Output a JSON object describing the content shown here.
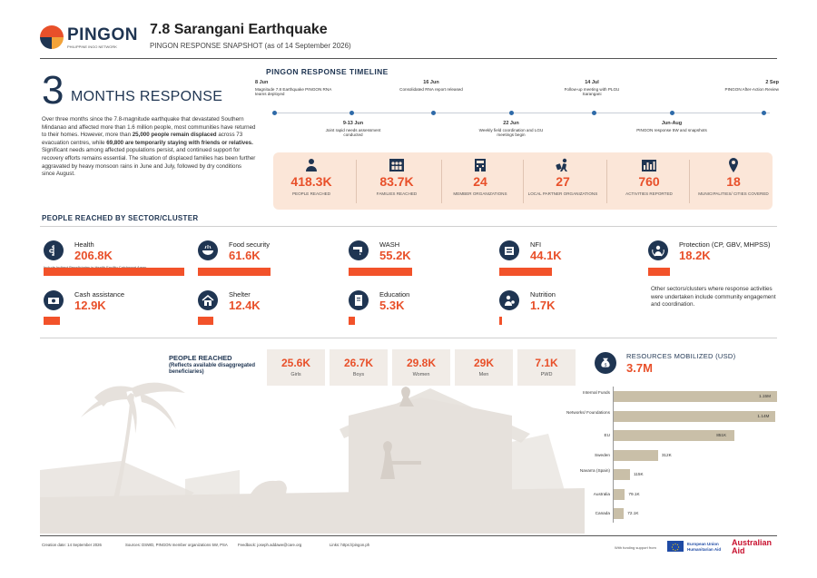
{
  "header": {
    "logo_text": "PINGON",
    "logo_subtext": "PHILIPPINE INGO NETWORK",
    "title": "7.8 Sarangani Earthquake",
    "subtitle": "PINGON RESPONSE SNAPSHOT (as of 14 September 2026)"
  },
  "intro": {
    "big_number": "3",
    "months_label": "MONTHS RESPONSE",
    "text_1": "Over three months since the 7.8-magnitude earthquake that devastated Southern Mindanao and affected more than 1.6 million people, most communities have returned to their homes. However, more than ",
    "text_bold_1": "25,000 people remain displaced",
    "text_2": " across 73 evacuation centres, while ",
    "text_bold_2": "69,800 are temporarily staying with friends or relatives.",
    "text_3": " Significant needs among affected populations persist, and continued support for recovery efforts remains essential. The situation of displaced families has been further aggravated by heavy monsoon rains in June and July, followed by dry conditions since August."
  },
  "timeline": {
    "title": "PINGON RESPONSE TIMELINE",
    "events_top": [
      {
        "date": "8 Jun",
        "text": "Magnitude 7.8 Earthquake PINGON RNA teams deployed"
      },
      {
        "date": "16 Jun",
        "text": "Consolidated RNA report released"
      },
      {
        "date": "14 Jul",
        "text": "Follow-up meeting with PLGU Sarangani"
      },
      {
        "date": "2 Sep",
        "text": "PINGON After-Action Review"
      }
    ],
    "events_bottom": [
      {
        "date": "9-13 Jun",
        "text": "Joint rapid needs assessment conducted"
      },
      {
        "date": "22 Jun",
        "text": "Weekly field coordination and LGU meetings begin"
      },
      {
        "date": "Jun-Aug",
        "text": "PINGON response 5W and snapshots"
      }
    ]
  },
  "kpis": [
    {
      "value": "418.3K",
      "label": "PEOPLE REACHED",
      "icon": "person-icon"
    },
    {
      "value": "83.7K",
      "label": "FAMILIES REACHED",
      "icon": "family-icon"
    },
    {
      "value": "24",
      "label": "MEMBER ORGANIZATIONS",
      "icon": "ngo-building-icon"
    },
    {
      "value": "27",
      "label": "LOCAL PARTNER ORGANIZATIONS",
      "icon": "partner-icon"
    },
    {
      "value": "760",
      "label": "ACTIVITIES REPORTED",
      "icon": "activities-icon"
    },
    {
      "value": "18",
      "label": "MUNICIPALITIES/ CITIES COVERED",
      "icon": "location-pin-icon"
    }
  ],
  "sectors": {
    "title": "PEOPLE REACHED BY SECTOR/CLUSTER",
    "items": [
      {
        "name": "Health",
        "value": "206.8K",
        "note": "Include Indirect Beneficiaries in Health Facility Catchment Areas",
        "fraction": 1.0
      },
      {
        "name": "Food security",
        "value": "61.6K",
        "note": "",
        "fraction": 0.298
      },
      {
        "name": "WASH",
        "value": "55.2K",
        "note": "",
        "fraction": 0.267
      },
      {
        "name": "NFI",
        "value": "44.1K",
        "note": "",
        "fraction": 0.213
      },
      {
        "name": "Protection (CP, GBV, MHPSS)",
        "value": "18.2K",
        "note": "",
        "fraction": 0.088
      },
      {
        "name": "Cash assistance",
        "value": "12.9K",
        "note": "",
        "fraction": 0.062
      },
      {
        "name": "Shelter",
        "value": "12.4K",
        "note": "",
        "fraction": 0.06
      },
      {
        "name": "Education",
        "value": "5.3K",
        "note": "",
        "fraction": 0.026
      },
      {
        "name": "Nutrition",
        "value": "1.7K",
        "note": "",
        "fraction": 0.008
      }
    ],
    "other_text": "Other sectors/clusters where response activities were undertaken include community engagement and coordination."
  },
  "people_reached": {
    "title": "PEOPLE REACHED",
    "subtitle": "(Reflects available disaggregated beneficiaries)",
    "cards": [
      {
        "value": "25.6K",
        "label": "Girls"
      },
      {
        "value": "26.7K",
        "label": "Boys"
      },
      {
        "value": "29.8K",
        "label": "Women"
      },
      {
        "value": "29K",
        "label": "Men"
      },
      {
        "value": "7.1K",
        "label": "PWD"
      }
    ]
  },
  "resources": {
    "title": "RESOURCES MOBILIZED (USD)",
    "total": "3.7M",
    "chart_data": {
      "type": "bar",
      "categories": [
        "Internal Funds",
        "Networks/ Foundations",
        "EU",
        "Sweden",
        "Navarra (Spain)",
        "Australia",
        "Canada"
      ],
      "values": [
        1150000,
        1140000,
        851000,
        312000,
        115000,
        79100,
        72100
      ],
      "value_labels": [
        "1.15M",
        "1.14M",
        "851K",
        "312K",
        "115K",
        "79.1K",
        "72.1K"
      ]
    }
  },
  "footer": {
    "creation_date": "Creation date: 14 September 2026",
    "sources": "Sources: DSWD, PINGON member organizations 5W, PSA",
    "feedback": "Feedback: joseph.addawe@care.org",
    "links": "Links: https://pingon.ph",
    "funding_label": "With funding support from",
    "eu_text_1": "European Union",
    "eu_text_2": "Humanitarian Aid",
    "aus_text_1": "Australian",
    "aus_text_2": "Aid"
  },
  "colors": {
    "accent": "#e8502a",
    "navy": "#1f3552",
    "bar": "#f2522a",
    "resource_bar": "#c9bfa8",
    "kpi_bg": "#fbe6d8"
  }
}
